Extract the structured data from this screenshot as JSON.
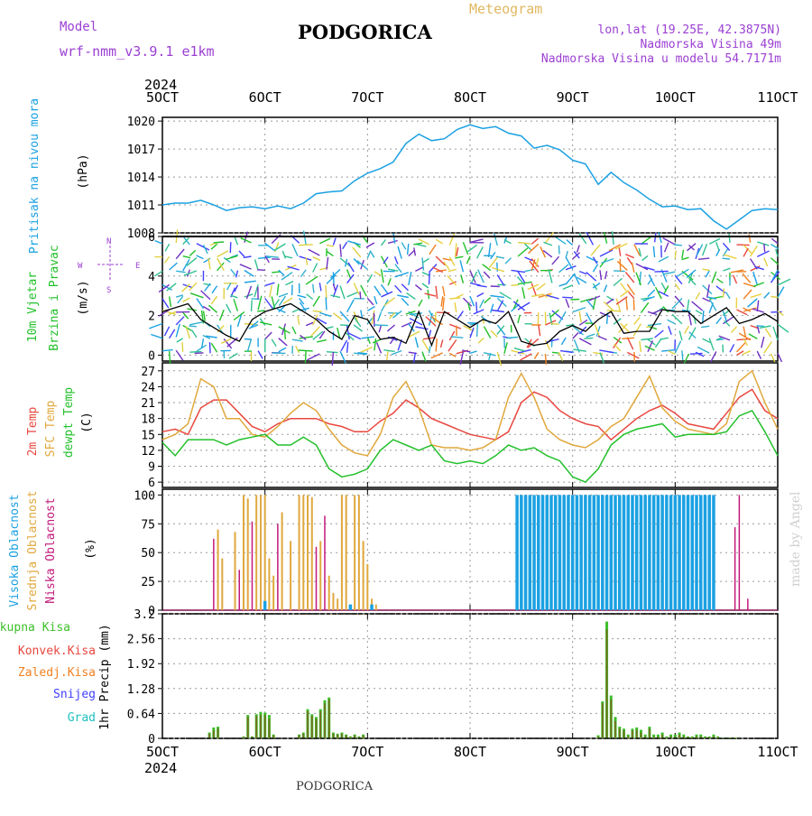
{
  "header": {
    "model_label": "Model",
    "model_name": "wrf-nmm_v3.9.1  e1km",
    "title": "PODGORICA",
    "subtitle": "Meteogram",
    "coords": "lon,lat (19.25E, 42.3875N)",
    "elevation": "Nadmorska Visina 49m",
    "model_elevation": "Nadmorska Visina u modelu 54.7171m",
    "year_top": "2024",
    "year_bottom": "2024",
    "footer_station": "PODGORICA",
    "credit": "made by Angel"
  },
  "colors": {
    "pressure": "#1ba1e2",
    "temp2m": "#e8473f",
    "sfc_temp": "#e0a83c",
    "dewpt": "#22c02a",
    "high_cloud": "#1ba1e2",
    "mid_cloud": "#e0a83c",
    "low_cloud": "#c2187a",
    "total_precip": "#3cbf2a",
    "conv_precip": "#e8473f",
    "frozen_precip": "#f08020",
    "snow": "#4040ff",
    "hail": "#20c0c0",
    "wind_label": "#22c02a",
    "compass": "#9b3fd3",
    "model_text": "#9b3fd3",
    "meteogram_text": "#e0b860"
  },
  "x_axis": {
    "ticks": [
      "5OCT",
      "6OCT",
      "7OCT",
      "8OCT",
      "9OCT",
      "10OCT",
      "11OCT"
    ]
  },
  "panels": {
    "pressure": {
      "label": "Pritisak na nivou mora",
      "unit": "(hPa)",
      "ticks": [
        "1008",
        "1011",
        "1014",
        "1017",
        "1020"
      ]
    },
    "wind": {
      "label_line1": "10m Vjetar",
      "label_line2": "Brzina i Pravac",
      "unit": "(m/s)",
      "ticks": [
        "0",
        "2",
        "4",
        "6"
      ],
      "compass_n": "N",
      "compass_e": "E",
      "compass_w": "W",
      "compass_s": "S"
    },
    "temperature": {
      "label_2m": "2m Temp",
      "label_sfc": "SFC Temp",
      "label_dew": "dewpt Temp",
      "unit": "(C)",
      "ticks": [
        "6",
        "9",
        "12",
        "15",
        "18",
        "21",
        "24",
        "27"
      ]
    },
    "cloud": {
      "label_high": "Visoka Oblacnost",
      "label_mid": "Srednja Oblacnost",
      "label_low": "Niska Oblacnost",
      "unit": "(%)",
      "ticks": [
        "0",
        "25",
        "50",
        "75",
        "100"
      ]
    },
    "precip": {
      "label_total": "Ukupna Kisa",
      "label_conv": "Konvek.Kisa",
      "label_frozen": "Zaledj.Kisa",
      "label_snow": "Snijeg",
      "label_hail": "Grad",
      "unit": "1hr Precip (mm)",
      "ticks": [
        "0",
        "0.64",
        "1.28",
        "1.92",
        "2.56",
        "3.2"
      ]
    }
  },
  "chart_data": [
    {
      "type": "line",
      "name": "pressure",
      "ylabel": "Pritisak na nivou mora (hPa)",
      "ylim": [
        1008,
        1020.4
      ],
      "x_hours": [
        0,
        3,
        6,
        9,
        12,
        15,
        18,
        21,
        24,
        27,
        30,
        33,
        36,
        39,
        42,
        45,
        48,
        51,
        54,
        57,
        60,
        63,
        66,
        69,
        72,
        75,
        78,
        81,
        84,
        87,
        90,
        93,
        96,
        99,
        102,
        105,
        108,
        111,
        114,
        117,
        120,
        123,
        126,
        129,
        132,
        135,
        138,
        141,
        144
      ],
      "values": [
        1011.0,
        1011.2,
        1011.2,
        1011.5,
        1011.0,
        1010.4,
        1010.7,
        1010.8,
        1010.6,
        1010.9,
        1010.6,
        1011.2,
        1012.2,
        1012.4,
        1012.5,
        1013.6,
        1014.4,
        1014.9,
        1015.6,
        1017.6,
        1018.6,
        1017.9,
        1018.1,
        1019.1,
        1019.6,
        1019.2,
        1019.4,
        1018.7,
        1018.4,
        1017.1,
        1017.4,
        1016.9,
        1015.8,
        1015.4,
        1013.2,
        1014.5,
        1013.4,
        1012.6,
        1011.6,
        1010.8,
        1010.9,
        1010.5,
        1010.6,
        1009.3,
        1008.4,
        1009.4,
        1010.4,
        1010.6,
        1010.5
      ]
    },
    {
      "type": "line",
      "name": "temperature",
      "ylabel": "(C)",
      "ylim": [
        5,
        28.5
      ],
      "x_hours": [
        0,
        3,
        6,
        9,
        12,
        15,
        18,
        21,
        24,
        27,
        30,
        33,
        36,
        39,
        42,
        45,
        48,
        51,
        54,
        57,
        60,
        63,
        66,
        69,
        72,
        75,
        78,
        81,
        84,
        87,
        90,
        93,
        96,
        99,
        102,
        105,
        108,
        111,
        114,
        117,
        120,
        123,
        126,
        129,
        132,
        135,
        138,
        141,
        144
      ],
      "series": [
        {
          "name": "2m Temp",
          "values": [
            15.5,
            16,
            15,
            20,
            21.5,
            21.5,
            19,
            16.5,
            15.5,
            17,
            18,
            18,
            18,
            17,
            16.5,
            15.5,
            15.5,
            17.5,
            19,
            21.5,
            20,
            18,
            17,
            16,
            15,
            14.5,
            14,
            15.5,
            21,
            23,
            22,
            19.5,
            18,
            17,
            16.5,
            14,
            16,
            18,
            19.5,
            20.5,
            19,
            17,
            16.5,
            16,
            19,
            22,
            23.5,
            19.5,
            18
          ]
        },
        {
          "name": "SFC Temp",
          "values": [
            14,
            15,
            17,
            25.5,
            24,
            18,
            18,
            15,
            14.5,
            16.5,
            19,
            21,
            19.5,
            16,
            13,
            11.5,
            11,
            15,
            22,
            25,
            20,
            13,
            12.5,
            12.5,
            12,
            12.5,
            14,
            22,
            26.5,
            22,
            16,
            14,
            13,
            12.5,
            14,
            16.5,
            18,
            22,
            26,
            20,
            17.5,
            16,
            15.5,
            15,
            17,
            25,
            27,
            21,
            16
          ]
        },
        {
          "name": "dewpt Temp",
          "values": [
            13.5,
            11,
            14,
            14,
            14,
            13,
            14,
            14.5,
            15,
            13,
            13,
            14.5,
            13,
            8.5,
            7,
            7.5,
            8.5,
            12,
            14,
            13,
            12,
            13,
            10,
            9.5,
            10,
            9.5,
            11,
            13,
            12,
            12.5,
            11,
            10,
            7,
            6,
            8.5,
            13,
            15,
            16,
            16.5,
            17,
            14.5,
            15,
            15,
            15,
            15.5,
            18.5,
            19.5,
            15.5,
            11
          ]
        }
      ]
    },
    {
      "type": "bar",
      "name": "cloud cover",
      "ylabel": "(%)",
      "ylim": [
        0,
        100
      ],
      "series": [
        {
          "name": "Niska Oblacnost",
          "x_hours": [
            12,
            18,
            21,
            27,
            36,
            38,
            87,
            88,
            90,
            92,
            94,
            96,
            98,
            101,
            102,
            104,
            106,
            110,
            112,
            121,
            122,
            126,
            134,
            135,
            137
          ],
          "values": [
            62,
            35,
            77,
            75,
            55,
            82,
            18,
            45,
            96,
            56,
            96,
            97,
            95,
            74,
            82,
            67,
            92,
            62,
            5,
            26,
            5,
            63,
            72,
            100,
            10
          ]
        },
        {
          "name": "Srednja Oblacnost",
          "x_hours": [
            13,
            14,
            17,
            19,
            20,
            22,
            23,
            24,
            25,
            26,
            28,
            30,
            32,
            33,
            34,
            35,
            37,
            39,
            40,
            41,
            42,
            43,
            45,
            46,
            47,
            48,
            49,
            50,
            84,
            86,
            88,
            89,
            90,
            91,
            95,
            96,
            98,
            100
          ],
          "values": [
            70,
            45,
            68,
            100,
            97,
            100,
            100,
            100,
            45,
            30,
            85,
            60,
            100,
            100,
            100,
            98,
            60,
            30,
            15,
            10,
            100,
            100,
            100,
            100,
            60,
            40,
            10,
            5,
            100,
            100,
            100,
            100,
            100,
            100,
            50,
            60,
            100,
            90
          ]
        },
        {
          "name": "Visoka Oblacnost",
          "x_hours": [
            24,
            44,
            49,
            83,
            84,
            85,
            86,
            87,
            88,
            89,
            90,
            91,
            92,
            93,
            94,
            95,
            96,
            97,
            98,
            99,
            100,
            101,
            102,
            103,
            104,
            105,
            106,
            107,
            108,
            109,
            110,
            111,
            112,
            113,
            114,
            115,
            116,
            117,
            118,
            119,
            120,
            121,
            122,
            123,
            124,
            125,
            126,
            127,
            128,
            129
          ],
          "values": [
            8,
            5,
            5,
            100,
            100,
            100,
            100,
            100,
            100,
            100,
            100,
            100,
            100,
            100,
            100,
            100,
            100,
            100,
            100,
            100,
            100,
            100,
            100,
            100,
            100,
            100,
            100,
            100,
            100,
            100,
            100,
            100,
            100,
            100,
            100,
            100,
            100,
            100,
            100,
            100,
            100,
            100,
            100,
            100,
            100,
            100,
            100,
            100,
            100,
            100
          ]
        }
      ]
    },
    {
      "type": "bar",
      "name": "hourly precipitation",
      "ylabel": "1hr Precip (mm)",
      "ylim": [
        0,
        3.2
      ],
      "series": [
        {
          "name": "Ukupna Kisa",
          "x_hours": [
            11,
            12,
            13,
            19,
            20,
            21,
            22,
            23,
            24,
            25,
            26,
            32,
            33,
            34,
            35,
            36,
            37,
            38,
            39,
            40,
            41,
            42,
            43,
            44,
            45,
            46,
            47,
            102,
            103,
            104,
            105,
            106,
            107,
            108,
            109,
            110,
            111,
            112,
            113,
            114,
            115,
            116,
            117,
            118,
            119,
            120,
            121,
            122,
            123,
            124,
            125,
            126,
            127,
            128,
            129,
            130,
            131,
            132,
            133,
            134,
            135
          ],
          "values": [
            0.15,
            0.28,
            0.3,
            0.05,
            0.6,
            0.05,
            0.62,
            0.68,
            0.66,
            0.6,
            0.1,
            0.1,
            0.15,
            0.75,
            0.62,
            0.55,
            0.75,
            0.98,
            1.05,
            0.15,
            0.12,
            0.15,
            0.1,
            0.05,
            0.1,
            0.05,
            0.1,
            0.08,
            0.95,
            3.0,
            1.1,
            0.55,
            0.3,
            0.25,
            0.1,
            0.25,
            0.28,
            0.22,
            0.1,
            0.3,
            0.1,
            0.1,
            0.15,
            0.05,
            0.1,
            0.1,
            0.15,
            0.1,
            0.05,
            0.05,
            0.1,
            0.1,
            0.05,
            0.05,
            0.1,
            0.05,
            0.02,
            0.02,
            0.02,
            0.02,
            0.02
          ]
        },
        {
          "name": "Konvek.Kisa",
          "x_hours": [
            11,
            12,
            13,
            19,
            20,
            21,
            22,
            23,
            24,
            25,
            26,
            32,
            33,
            34,
            35,
            36,
            37,
            38,
            39,
            40,
            41,
            42,
            43,
            44,
            45,
            46,
            47,
            102,
            103,
            104,
            105,
            106,
            107,
            108,
            109,
            110,
            111,
            112,
            113,
            114,
            115,
            116,
            117,
            118,
            119,
            120,
            121,
            122,
            123,
            124,
            125,
            126,
            127,
            128,
            129,
            130,
            131,
            132,
            133,
            134,
            135
          ],
          "values": [
            0.12,
            0.2,
            0.25,
            0.04,
            0.55,
            0.04,
            0.58,
            0.6,
            0.6,
            0.5,
            0.08,
            0.08,
            0.12,
            0.7,
            0.58,
            0.5,
            0.7,
            0.9,
            1.0,
            0.12,
            0.1,
            0.12,
            0.08,
            0.04,
            0.08,
            0.04,
            0.08,
            0.05,
            0.9,
            2.8,
            1.0,
            0.45,
            0.25,
            0.2,
            0.05,
            0.2,
            0.22,
            0.15,
            0.05,
            0.25,
            0.05,
            0.05,
            0.1,
            0.03,
            0.05,
            0.05,
            0.1,
            0.05,
            0.03,
            0.03,
            0.05,
            0.05,
            0.03,
            0.03,
            0.05,
            0.03,
            0.01,
            0.01,
            0.01,
            0.01,
            0.01
          ]
        }
      ]
    },
    {
      "type": "scatter",
      "name": "10m wind",
      "ylabel": "(m/s)",
      "ylim": [
        -0.3,
        6
      ],
      "x_hours": [
        0,
        3,
        6,
        9,
        12,
        15,
        18,
        21,
        24,
        27,
        30,
        33,
        36,
        39,
        42,
        45,
        48,
        51,
        54,
        57,
        60,
        63,
        66,
        69,
        72,
        75,
        78,
        81,
        84,
        87,
        90,
        93,
        96,
        99,
        102,
        105,
        108,
        111,
        114,
        117,
        120,
        123,
        126,
        129,
        132,
        135,
        138,
        141,
        144
      ],
      "values": [
        2.2,
        2.4,
        2.6,
        1.8,
        1.4,
        1.0,
        0.7,
        1.8,
        2.2,
        2.4,
        2.6,
        2.2,
        1.8,
        1.2,
        0.8,
        2.0,
        1.8,
        0.8,
        0.9,
        0.6,
        2.2,
        0.5,
        2.2,
        1.8,
        1.4,
        1.8,
        1.6,
        2.2,
        0.7,
        0.5,
        0.6,
        1.2,
        1.5,
        1.2,
        1.8,
        2.2,
        1.1,
        1.2,
        1.2,
        2.3,
        2.2,
        2.2,
        1.6,
        2.0,
        2.4,
        1.6,
        1.8,
        2.1,
        1.7
      ]
    }
  ]
}
